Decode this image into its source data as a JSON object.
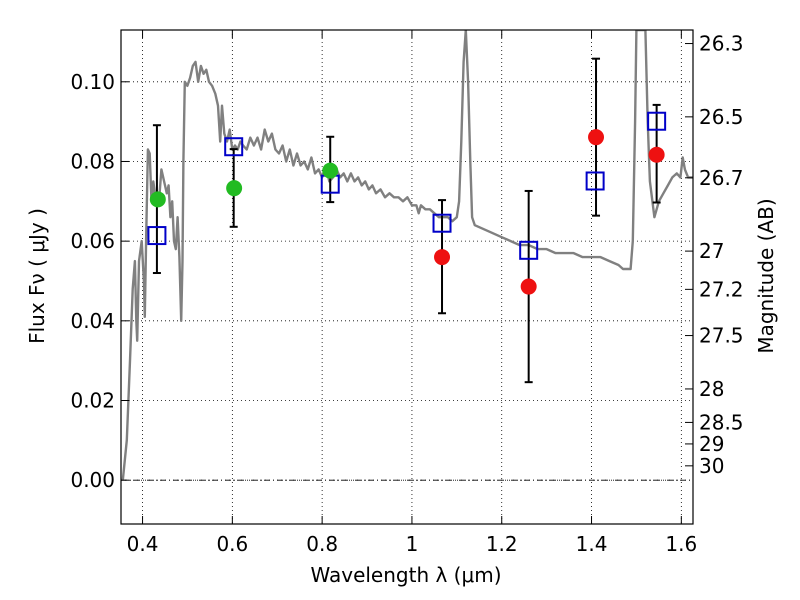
{
  "chart_data": {
    "type": "scatter",
    "title": "",
    "xlabel": "Wavelength  λ (μm)",
    "ylabel": "Flux  Fν  ( μJy )",
    "y2label": "Magnitude (AB)",
    "xlim": [
      0.352,
      1.626
    ],
    "ylim": [
      -0.011,
      0.113
    ],
    "grid": true,
    "x_ticks": [
      0.4,
      0.6,
      0.8,
      1,
      1.2,
      1.4,
      1.6
    ],
    "x_tick_labels": [
      "0.4",
      "0.6",
      "0.8",
      "1",
      "1.2",
      "1.4",
      "1.6"
    ],
    "y_ticks": [
      0,
      0.02,
      0.04,
      0.06,
      0.08,
      0.1
    ],
    "y_tick_labels": [
      "0.00",
      "0.02",
      "0.04",
      "0.06",
      "0.08",
      "0.10"
    ],
    "mag_ticks": [
      {
        "label": "26.3",
        "flux": 0.1096
      },
      {
        "label": "26.5",
        "flux": 0.0912
      },
      {
        "label": "26.7",
        "flux": 0.0759
      },
      {
        "label": "27",
        "flux": 0.0575
      },
      {
        "label": "27.2",
        "flux": 0.0479
      },
      {
        "label": "27.5",
        "flux": 0.0363
      },
      {
        "label": "28",
        "flux": 0.0229
      },
      {
        "label": "28.5",
        "flux": 0.0145
      },
      {
        "label": "29",
        "flux": 0.0091
      },
      {
        "label": "30",
        "flux": 0.0036
      }
    ],
    "series": [
      {
        "kind": "line",
        "color": "#808080",
        "points": [
          [
            0.356,
            0.0
          ],
          [
            0.365,
            0.01
          ],
          [
            0.372,
            0.03
          ],
          [
            0.378,
            0.048
          ],
          [
            0.383,
            0.055
          ],
          [
            0.386,
            0.04
          ],
          [
            0.388,
            0.035
          ],
          [
            0.392,
            0.055
          ],
          [
            0.398,
            0.06
          ],
          [
            0.403,
            0.05
          ],
          [
            0.405,
            0.041
          ],
          [
            0.408,
            0.06
          ],
          [
            0.412,
            0.083
          ],
          [
            0.416,
            0.082
          ],
          [
            0.42,
            0.07
          ],
          [
            0.424,
            0.075
          ],
          [
            0.43,
            0.07
          ],
          [
            0.436,
            0.069
          ],
          [
            0.442,
            0.078
          ],
          [
            0.448,
            0.075
          ],
          [
            0.454,
            0.072
          ],
          [
            0.458,
            0.074
          ],
          [
            0.462,
            0.066
          ],
          [
            0.466,
            0.07
          ],
          [
            0.47,
            0.06
          ],
          [
            0.474,
            0.058
          ],
          [
            0.478,
            0.066
          ],
          [
            0.482,
            0.056
          ],
          [
            0.486,
            0.04
          ],
          [
            0.489,
            0.055
          ],
          [
            0.491,
            0.08
          ],
          [
            0.494,
            0.1
          ],
          [
            0.5,
            0.099
          ],
          [
            0.506,
            0.101
          ],
          [
            0.512,
            0.104
          ],
          [
            0.518,
            0.105
          ],
          [
            0.524,
            0.1
          ],
          [
            0.53,
            0.104
          ],
          [
            0.536,
            0.102
          ],
          [
            0.542,
            0.103
          ],
          [
            0.548,
            0.1
          ],
          [
            0.555,
            0.099
          ],
          [
            0.562,
            0.097
          ],
          [
            0.568,
            0.094
          ],
          [
            0.573,
            0.085
          ],
          [
            0.577,
            0.094
          ],
          [
            0.582,
            0.087
          ],
          [
            0.588,
            0.085
          ],
          [
            0.594,
            0.088
          ],
          [
            0.6,
            0.083
          ],
          [
            0.606,
            0.084
          ],
          [
            0.612,
            0.083
          ],
          [
            0.618,
            0.085
          ],
          [
            0.624,
            0.084
          ],
          [
            0.632,
            0.083
          ],
          [
            0.64,
            0.086
          ],
          [
            0.648,
            0.084
          ],
          [
            0.656,
            0.086
          ],
          [
            0.664,
            0.083
          ],
          [
            0.672,
            0.088
          ],
          [
            0.68,
            0.085
          ],
          [
            0.688,
            0.087
          ],
          [
            0.696,
            0.083
          ],
          [
            0.704,
            0.082
          ],
          [
            0.712,
            0.084
          ],
          [
            0.72,
            0.08
          ],
          [
            0.728,
            0.083
          ],
          [
            0.736,
            0.079
          ],
          [
            0.744,
            0.082
          ],
          [
            0.752,
            0.079
          ],
          [
            0.76,
            0.08
          ],
          [
            0.768,
            0.078
          ],
          [
            0.776,
            0.081
          ],
          [
            0.784,
            0.077
          ],
          [
            0.792,
            0.078
          ],
          [
            0.8,
            0.076
          ],
          [
            0.808,
            0.079
          ],
          [
            0.816,
            0.075
          ],
          [
            0.824,
            0.076
          ],
          [
            0.832,
            0.078
          ],
          [
            0.84,
            0.076
          ],
          [
            0.848,
            0.077
          ],
          [
            0.856,
            0.075
          ],
          [
            0.864,
            0.077
          ],
          [
            0.872,
            0.075
          ],
          [
            0.88,
            0.076
          ],
          [
            0.888,
            0.074
          ],
          [
            0.896,
            0.075
          ],
          [
            0.904,
            0.073
          ],
          [
            0.912,
            0.074
          ],
          [
            0.92,
            0.072
          ],
          [
            0.93,
            0.073
          ],
          [
            0.94,
            0.071
          ],
          [
            0.95,
            0.072
          ],
          [
            0.96,
            0.071
          ],
          [
            0.97,
            0.071
          ],
          [
            0.98,
            0.07
          ],
          [
            0.99,
            0.071
          ],
          [
            1.0,
            0.069
          ],
          [
            1.01,
            0.069
          ],
          [
            1.015,
            0.067
          ],
          [
            1.02,
            0.069
          ],
          [
            1.03,
            0.068
          ],
          [
            1.04,
            0.068
          ],
          [
            1.05,
            0.067
          ],
          [
            1.06,
            0.066
          ],
          [
            1.07,
            0.066
          ],
          [
            1.08,
            0.066
          ],
          [
            1.09,
            0.065
          ],
          [
            1.1,
            0.066
          ],
          [
            1.105,
            0.07
          ],
          [
            1.11,
            0.085
          ],
          [
            1.115,
            0.105
          ],
          [
            1.12,
            0.113
          ],
          [
            1.125,
            0.1
          ],
          [
            1.13,
            0.08
          ],
          [
            1.134,
            0.066
          ],
          [
            1.14,
            0.064
          ],
          [
            1.16,
            0.063
          ],
          [
            1.18,
            0.062
          ],
          [
            1.2,
            0.061
          ],
          [
            1.22,
            0.06
          ],
          [
            1.24,
            0.059
          ],
          [
            1.26,
            0.059
          ],
          [
            1.28,
            0.058
          ],
          [
            1.3,
            0.058
          ],
          [
            1.32,
            0.057
          ],
          [
            1.34,
            0.057
          ],
          [
            1.36,
            0.057
          ],
          [
            1.38,
            0.056
          ],
          [
            1.4,
            0.056
          ],
          [
            1.42,
            0.056
          ],
          [
            1.44,
            0.055
          ],
          [
            1.46,
            0.054
          ],
          [
            1.47,
            0.053
          ],
          [
            1.48,
            0.053
          ],
          [
            1.487,
            0.053
          ],
          [
            1.492,
            0.06
          ],
          [
            1.497,
            0.09
          ],
          [
            1.5,
            0.113
          ],
          [
            1.52,
            0.113
          ],
          [
            1.525,
            0.09
          ],
          [
            1.53,
            0.075
          ],
          [
            1.54,
            0.066
          ],
          [
            1.55,
            0.07
          ],
          [
            1.56,
            0.072
          ],
          [
            1.57,
            0.074
          ],
          [
            1.58,
            0.076
          ],
          [
            1.59,
            0.077
          ],
          [
            1.598,
            0.076
          ],
          [
            1.603,
            0.081
          ],
          [
            1.608,
            0.078
          ],
          [
            1.615,
            0.076
          ],
          [
            1.626,
            0.076
          ]
        ]
      },
      {
        "kind": "open-square",
        "color": "#0000c8",
        "points": [
          [
            0.432,
            0.0614
          ],
          [
            0.603,
            0.0837
          ],
          [
            0.818,
            0.0743
          ],
          [
            1.067,
            0.0645
          ],
          [
            1.26,
            0.0577
          ],
          [
            1.408,
            0.0751
          ],
          [
            1.545,
            0.0901
          ]
        ]
      },
      {
        "kind": "filled-circle",
        "color": "#22bb22",
        "points": [
          [
            0.434,
            0.0705
          ],
          [
            0.604,
            0.0733
          ],
          [
            0.818,
            0.0777
          ]
        ]
      },
      {
        "kind": "filled-circle",
        "color": "#ee1111",
        "points": [
          [
            1.067,
            0.056
          ],
          [
            1.26,
            0.0486
          ],
          [
            1.41,
            0.0861
          ],
          [
            1.545,
            0.0817
          ]
        ]
      }
    ],
    "error_bars": [
      {
        "x": 0.432,
        "low": 0.052,
        "high": 0.0891
      },
      {
        "x": 0.603,
        "low": 0.0636,
        "high": 0.0831
      },
      {
        "x": 0.818,
        "low": 0.0698,
        "high": 0.0862
      },
      {
        "x": 1.067,
        "low": 0.0419,
        "high": 0.0703
      },
      {
        "x": 1.26,
        "low": 0.0246,
        "high": 0.0726
      },
      {
        "x": 1.41,
        "low": 0.0664,
        "high": 0.1058
      },
      {
        "x": 1.545,
        "low": 0.0697,
        "high": 0.0942
      }
    ]
  }
}
